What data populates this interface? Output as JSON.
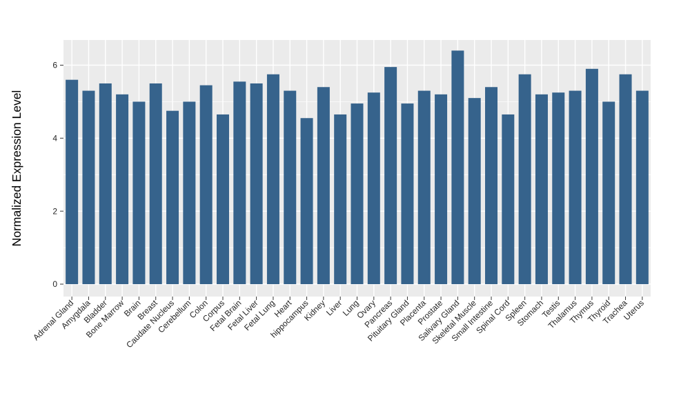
{
  "chart_data": {
    "type": "bar",
    "title": "",
    "xlabel": "",
    "ylabel": "Normalized Expression Level",
    "categories": [
      "Adrenal Gland",
      "Amygdala",
      "Bladder",
      "Bone Marrow",
      "Brain",
      "Breast",
      "Caudate Nucleus",
      "Cerebellum",
      "Colon",
      "Corpus",
      "Fetal Brain",
      "Fetal Liver",
      "Fetal Lung",
      "Heart",
      "hippocampus",
      "Kidney",
      "Liver",
      "Lung",
      "Ovary",
      "Pancreas",
      "Pituitary Gland",
      "Placenta",
      "Prostate",
      "Salivary Gland",
      "Skeletal Muscle",
      "Small Intestine",
      "Spinal Cord",
      "Spleen",
      "Stomach",
      "Testis",
      "Thalamus",
      "Thymus",
      "Thyroid",
      "Trachea",
      "Uterus"
    ],
    "values": [
      5.6,
      5.3,
      5.5,
      5.2,
      5.0,
      5.5,
      4.75,
      5.0,
      5.45,
      4.65,
      5.55,
      5.5,
      5.75,
      5.3,
      4.55,
      5.4,
      4.65,
      4.95,
      5.25,
      5.95,
      4.95,
      5.3,
      5.2,
      6.4,
      5.1,
      5.4,
      4.65,
      5.75,
      5.2,
      5.25,
      5.3,
      5.9,
      5.0,
      5.75,
      5.3
    ],
    "ylim": [
      -0.34,
      6.69
    ],
    "yticks": [
      0,
      2,
      4,
      6
    ],
    "yticks_minor": [
      1,
      3,
      5
    ],
    "grid": true,
    "legend": "none",
    "colors": {
      "bar": "#36638C",
      "panel_background": "#EBEBEB",
      "gridline": "#FFFFFF",
      "axis_text": "#262626",
      "tick_mark": "#333333",
      "axis_title": "#000000"
    }
  }
}
